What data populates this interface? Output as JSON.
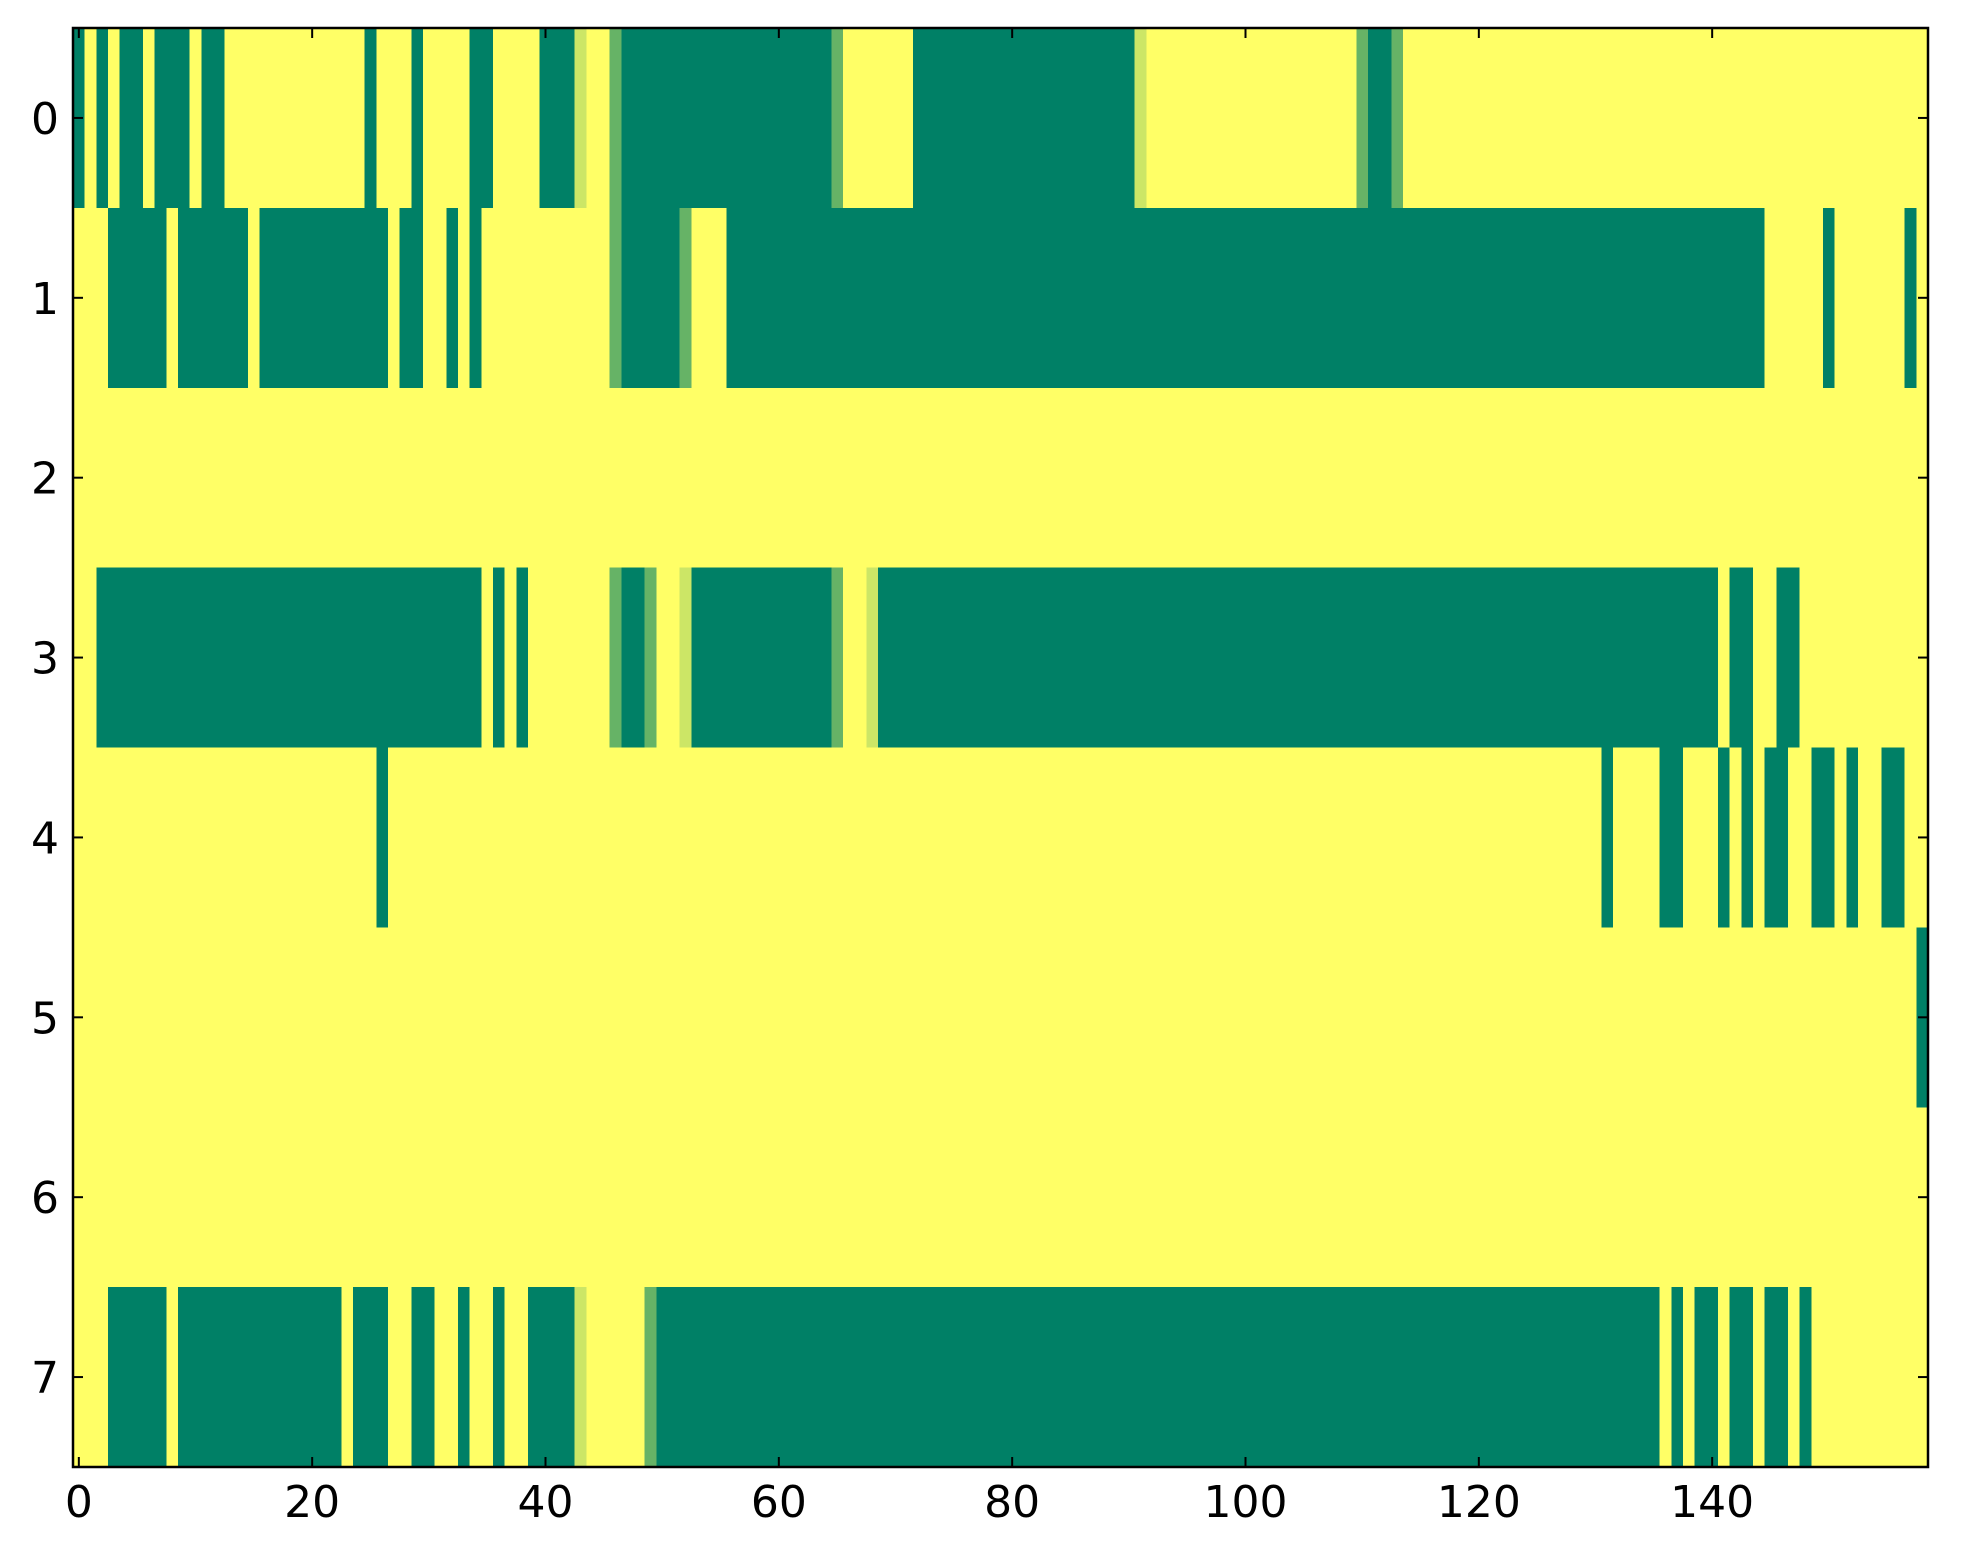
{
  "chart_data": {
    "type": "heatmap",
    "colormap": "summer",
    "xlim": [
      -0.5,
      158.5
    ],
    "ylim": [
      7.5,
      -0.5
    ],
    "xticks": [
      0,
      20,
      40,
      60,
      80,
      100,
      120,
      140
    ],
    "yticks": [
      0,
      1,
      2,
      3,
      4,
      5,
      6,
      7
    ],
    "z": [
      [
        0,
        1,
        0,
        1,
        0,
        0,
        1,
        0,
        0,
        0,
        1,
        0,
        0,
        1,
        1,
        1,
        1,
        1,
        1,
        1,
        1,
        1,
        1,
        1,
        1,
        0,
        1,
        1,
        1,
        0,
        1,
        1,
        1,
        1,
        0,
        0,
        1,
        1,
        1,
        1,
        0,
        0,
        0,
        0.8,
        1,
        1,
        0.4,
        0,
        0,
        0,
        0,
        0,
        0,
        0,
        0,
        0,
        0,
        0,
        0,
        0,
        0,
        0,
        0,
        0,
        0,
        0.4,
        1,
        1,
        1,
        1,
        1,
        1,
        0,
        0,
        0,
        0,
        0,
        0,
        0,
        0,
        0,
        0,
        0,
        0,
        0,
        0,
        0,
        0,
        0,
        0,
        0,
        0.8,
        1,
        1,
        1,
        1,
        1,
        1,
        1,
        1,
        1,
        1,
        1,
        1,
        1,
        1,
        1,
        1,
        1,
        1,
        0.4,
        0,
        0,
        0.4,
        1,
        1,
        1,
        1,
        1,
        1,
        1,
        1,
        1,
        1,
        1,
        1,
        1,
        1,
        1,
        1,
        1,
        1,
        1,
        1,
        1,
        1,
        1,
        1,
        1,
        1,
        1,
        1,
        1,
        1,
        1,
        1,
        1,
        1,
        1,
        1,
        1,
        1,
        1,
        1,
        1,
        1,
        1,
        1,
        1
      ],
      [
        1,
        1,
        1,
        0,
        0,
        0,
        0,
        0,
        1,
        0,
        0,
        0,
        0,
        0,
        0,
        1,
        0,
        0,
        0,
        0,
        0,
        0,
        0,
        0,
        0,
        0,
        0,
        1,
        0,
        0,
        1,
        1,
        0,
        1,
        0,
        1,
        1,
        1,
        1,
        1,
        1,
        1,
        1,
        1,
        1,
        1,
        0.4,
        0,
        0,
        0,
        0,
        0,
        0.4,
        1,
        1,
        1,
        0,
        0,
        0,
        0,
        0,
        0,
        0,
        0,
        0,
        0,
        0,
        0,
        0,
        0,
        0,
        0,
        0,
        0,
        0,
        0,
        0,
        0,
        0,
        0,
        0,
        0,
        0,
        0,
        0,
        0,
        0,
        0,
        0,
        0,
        0,
        0,
        0,
        0,
        0,
        0,
        0,
        0,
        0,
        0,
        0,
        0,
        0,
        0,
        0,
        0,
        0,
        0,
        0,
        0,
        0,
        0,
        0,
        0,
        0,
        0,
        0,
        0,
        0,
        0,
        0,
        0,
        0,
        0,
        0,
        0,
        0,
        0,
        0,
        0,
        0,
        0,
        0,
        0,
        0,
        0,
        0,
        0,
        0,
        0,
        0,
        0,
        0,
        0,
        0,
        1,
        1,
        1,
        1,
        1,
        0,
        1,
        1,
        1,
        1,
        1,
        1,
        0,
        1
      ],
      [
        1,
        1,
        1,
        1,
        1,
        1,
        1,
        1,
        1,
        1,
        1,
        1,
        1,
        1,
        1,
        1,
        1,
        1,
        1,
        1,
        1,
        1,
        1,
        1,
        1,
        1,
        1,
        1,
        1,
        1,
        1,
        1,
        1,
        1,
        1,
        1,
        1,
        1,
        1,
        1,
        1,
        1,
        1,
        1,
        1,
        1,
        1,
        1,
        1,
        1,
        1,
        1,
        1,
        1,
        1,
        1,
        1,
        1,
        1,
        1,
        1,
        1,
        1,
        1,
        1,
        1,
        1,
        1,
        1,
        1,
        1,
        1,
        1,
        1,
        1,
        1,
        1,
        1,
        1,
        1,
        1,
        1,
        1,
        1,
        1,
        1,
        1,
        1,
        1,
        1,
        1,
        1,
        1,
        1,
        1,
        1,
        1,
        1,
        1,
        1,
        1,
        1,
        1,
        1,
        1,
        1,
        1,
        1,
        1,
        1,
        1,
        1,
        1,
        1,
        1,
        1,
        1,
        1,
        1,
        1,
        1,
        1,
        1,
        1,
        1,
        1,
        1,
        1,
        1,
        1,
        1,
        1,
        1,
        1,
        1,
        1,
        1,
        1,
        1,
        1,
        1,
        1,
        1,
        1,
        1,
        1,
        1,
        1,
        1,
        1,
        1,
        1,
        1,
        1,
        1,
        1,
        1,
        1,
        1
      ],
      [
        1,
        1,
        0,
        0,
        0,
        0,
        0,
        0,
        0,
        0,
        0,
        0,
        0,
        0,
        0,
        0,
        0,
        0,
        0,
        0,
        0,
        0,
        0,
        0,
        0,
        0,
        0,
        0,
        0,
        0,
        0,
        0,
        0,
        0,
        0,
        1,
        0,
        1,
        0,
        1,
        1,
        1,
        1,
        1,
        1,
        1,
        0.4,
        0,
        0,
        0.4,
        1,
        1,
        0.8,
        0,
        0,
        0,
        0,
        0,
        0,
        0,
        0,
        0,
        0,
        0,
        0,
        0.4,
        1,
        1,
        0.8,
        0,
        0,
        0,
        0,
        0,
        0,
        0,
        0,
        0,
        0,
        0,
        0,
        0,
        0,
        0,
        0,
        0,
        0,
        0,
        0,
        0,
        0,
        0,
        0,
        0,
        0,
        0,
        0,
        0,
        0,
        0,
        0,
        0,
        0,
        0,
        0,
        0,
        0,
        0,
        0,
        0,
        0,
        0,
        0,
        0,
        0,
        0,
        0,
        0,
        0,
        0,
        0,
        0,
        0,
        0,
        0,
        0,
        0,
        0,
        0,
        0,
        0,
        0,
        0,
        0,
        0,
        0,
        0,
        0,
        0,
        0,
        0,
        1,
        0,
        0,
        1,
        1,
        0,
        0,
        1,
        1,
        1,
        1,
        1,
        1,
        1,
        1,
        1,
        1,
        1
      ],
      [
        1,
        1,
        1,
        1,
        1,
        1,
        1,
        1,
        1,
        1,
        1,
        1,
        1,
        1,
        1,
        1,
        1,
        1,
        1,
        1,
        1,
        1,
        1,
        1,
        1,
        1,
        0,
        1,
        1,
        1,
        1,
        1,
        1,
        1,
        1,
        1,
        1,
        1,
        1,
        1,
        1,
        1,
        1,
        1,
        1,
        1,
        1,
        1,
        1,
        1,
        1,
        1,
        1,
        1,
        1,
        1,
        1,
        1,
        1,
        1,
        1,
        1,
        1,
        1,
        1,
        1,
        1,
        1,
        1,
        1,
        1,
        1,
        1,
        1,
        1,
        1,
        1,
        1,
        1,
        1,
        1,
        1,
        1,
        1,
        1,
        1,
        1,
        1,
        1,
        1,
        1,
        1,
        1,
        1,
        1,
        1,
        1,
        1,
        1,
        1,
        1,
        1,
        1,
        1,
        1,
        1,
        1,
        1,
        1,
        1,
        1,
        1,
        1,
        1,
        1,
        1,
        1,
        1,
        1,
        1,
        1,
        1,
        1,
        1,
        1,
        1,
        1,
        1,
        1,
        1,
        1,
        0,
        1,
        1,
        1,
        1,
        0,
        0,
        1,
        1,
        1,
        0,
        1,
        0,
        1,
        0,
        0,
        1,
        1,
        0,
        0,
        1,
        0,
        1,
        1,
        0,
        0,
        1,
        1
      ],
      [
        1,
        1,
        1,
        1,
        1,
        1,
        1,
        1,
        1,
        1,
        1,
        1,
        1,
        1,
        1,
        1,
        1,
        1,
        1,
        1,
        1,
        1,
        1,
        1,
        1,
        1,
        1,
        1,
        1,
        1,
        1,
        1,
        1,
        1,
        1,
        1,
        1,
        1,
        1,
        1,
        1,
        1,
        1,
        1,
        1,
        1,
        1,
        1,
        1,
        1,
        1,
        1,
        1,
        1,
        1,
        1,
        1,
        1,
        1,
        1,
        1,
        1,
        1,
        1,
        1,
        1,
        1,
        1,
        1,
        1,
        1,
        1,
        1,
        1,
        1,
        1,
        1,
        1,
        1,
        1,
        1,
        1,
        1,
        1,
        1,
        1,
        1,
        1,
        1,
        1,
        1,
        1,
        1,
        1,
        1,
        1,
        1,
        1,
        1,
        1,
        1,
        1,
        1,
        1,
        1,
        1,
        1,
        1,
        1,
        1,
        1,
        1,
        1,
        1,
        1,
        1,
        1,
        1,
        1,
        1,
        1,
        1,
        1,
        1,
        1,
        1,
        1,
        1,
        1,
        1,
        1,
        1,
        1,
        1,
        1,
        1,
        1,
        1,
        1,
        1,
        1,
        1,
        1,
        1,
        1,
        1,
        1,
        1,
        1,
        1,
        1,
        1,
        1,
        1,
        1,
        1,
        1,
        1,
        0
      ],
      [
        1,
        1,
        1,
        1,
        1,
        1,
        1,
        1,
        1,
        1,
        1,
        1,
        1,
        1,
        1,
        1,
        1,
        1,
        1,
        1,
        1,
        1,
        1,
        1,
        1,
        1,
        1,
        1,
        1,
        1,
        1,
        1,
        1,
        1,
        1,
        1,
        1,
        1,
        1,
        1,
        1,
        1,
        1,
        1,
        1,
        1,
        1,
        1,
        1,
        1,
        1,
        1,
        1,
        1,
        1,
        1,
        1,
        1,
        1,
        1,
        1,
        1,
        1,
        1,
        1,
        1,
        1,
        1,
        1,
        1,
        1,
        1,
        1,
        1,
        1,
        1,
        1,
        1,
        1,
        1,
        1,
        1,
        1,
        1,
        1,
        1,
        1,
        1,
        1,
        1,
        1,
        1,
        1,
        1,
        1,
        1,
        1,
        1,
        1,
        1,
        1,
        1,
        1,
        1,
        1,
        1,
        1,
        1,
        1,
        1,
        1,
        1,
        1,
        1,
        1,
        1,
        1,
        1,
        1,
        1,
        1,
        1,
        1,
        1,
        1,
        1,
        1,
        1,
        1,
        1,
        1,
        1,
        1,
        1,
        1,
        1,
        1,
        1,
        1,
        1,
        1,
        1,
        1,
        1,
        1,
        1,
        1,
        1,
        1,
        1,
        1,
        1,
        1,
        1,
        1,
        1,
        1,
        1,
        1
      ],
      [
        1,
        1,
        1,
        0,
        0,
        0,
        0,
        0,
        1,
        0,
        0,
        0,
        0,
        0,
        0,
        0,
        0,
        0,
        0,
        0,
        0,
        0,
        0,
        1,
        0,
        0,
        0,
        1,
        1,
        0,
        0,
        1,
        1,
        0,
        1,
        1,
        0,
        1,
        1,
        0,
        0,
        0,
        0,
        0.8,
        1,
        1,
        1,
        1,
        1,
        0.4,
        0,
        0,
        0,
        0,
        0,
        0,
        0,
        0,
        0,
        0,
        0,
        0,
        0,
        0,
        0,
        0,
        0,
        0,
        0,
        0,
        0,
        0,
        0,
        0,
        0,
        0,
        0,
        0,
        0,
        0,
        0,
        0,
        0,
        0,
        0,
        0,
        0,
        0,
        0,
        0,
        0,
        0,
        0,
        0,
        0,
        0,
        0,
        0,
        0,
        0,
        0,
        0,
        0,
        0,
        0,
        0,
        0,
        0,
        0,
        0,
        0,
        0,
        0,
        0,
        0,
        0,
        0,
        0,
        0,
        0,
        0,
        0,
        0,
        0,
        0,
        0,
        0,
        0,
        0,
        0,
        0,
        0,
        0,
        0,
        0,
        0,
        1,
        0,
        1,
        0,
        0,
        1,
        0,
        0,
        1,
        0,
        0,
        1,
        0,
        1,
        1,
        1,
        1,
        1,
        1,
        1,
        1,
        1,
        1
      ]
    ]
  }
}
